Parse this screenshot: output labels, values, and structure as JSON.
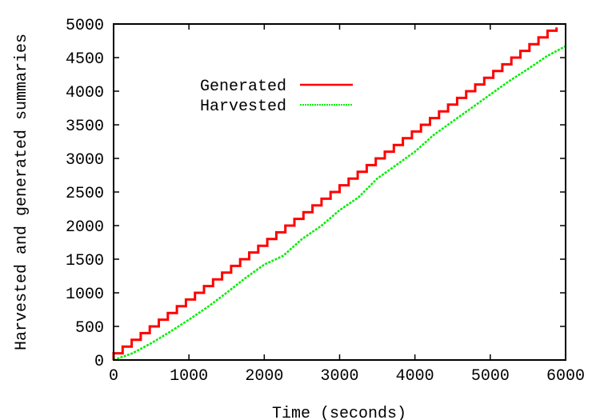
{
  "chart_data": {
    "type": "line",
    "title": "",
    "xlabel": "Time (seconds)",
    "ylabel": "Harvested and generated summaries",
    "xlim": [
      0,
      6000
    ],
    "ylim": [
      0,
      5000
    ],
    "xticks": [
      0,
      1000,
      2000,
      3000,
      4000,
      5000,
      6000
    ],
    "yticks": [
      0,
      500,
      1000,
      1500,
      2000,
      2500,
      3000,
      3500,
      4000,
      4500,
      5000
    ],
    "grid": false,
    "legend_position": "top-left",
    "series": [
      {
        "name": "Generated",
        "color": "#ff0000",
        "style": "solid-step",
        "x": [
          0,
          120,
          240,
          360,
          480,
          600,
          720,
          840,
          960,
          1080,
          1200,
          1320,
          1440,
          1560,
          1680,
          1800,
          1920,
          2040,
          2160,
          2280,
          2400,
          2520,
          2640,
          2760,
          2880,
          3000,
          3120,
          3240,
          3360,
          3480,
          3600,
          3720,
          3840,
          3960,
          4080,
          4200,
          4320,
          4440,
          4560,
          4680,
          4800,
          4920,
          5040,
          5160,
          5280,
          5400,
          5520,
          5640,
          5760,
          5880
        ],
        "y": [
          100,
          200,
          300,
          400,
          500,
          600,
          700,
          800,
          900,
          1000,
          1100,
          1200,
          1300,
          1400,
          1500,
          1600,
          1700,
          1800,
          1900,
          2000,
          2100,
          2200,
          2300,
          2400,
          2500,
          2600,
          2700,
          2800,
          2900,
          3000,
          3100,
          3200,
          3300,
          3400,
          3500,
          3600,
          3700,
          3800,
          3900,
          4000,
          4100,
          4200,
          4300,
          4400,
          4500,
          4600,
          4700,
          4800,
          4900,
          4950
        ]
      },
      {
        "name": "Harvested",
        "color": "#00ee00",
        "style": "dashed",
        "x": [
          0,
          250,
          500,
          750,
          1000,
          1250,
          1500,
          1750,
          2000,
          2250,
          2500,
          2750,
          3000,
          3250,
          3500,
          3750,
          4000,
          4250,
          4500,
          4750,
          5000,
          5250,
          5500,
          5750,
          6000
        ],
        "y": [
          0,
          100,
          250,
          420,
          600,
          790,
          1000,
          1220,
          1420,
          1550,
          1800,
          1990,
          2230,
          2420,
          2700,
          2900,
          3100,
          3350,
          3550,
          3750,
          3950,
          4150,
          4330,
          4520,
          4670
        ]
      }
    ]
  }
}
